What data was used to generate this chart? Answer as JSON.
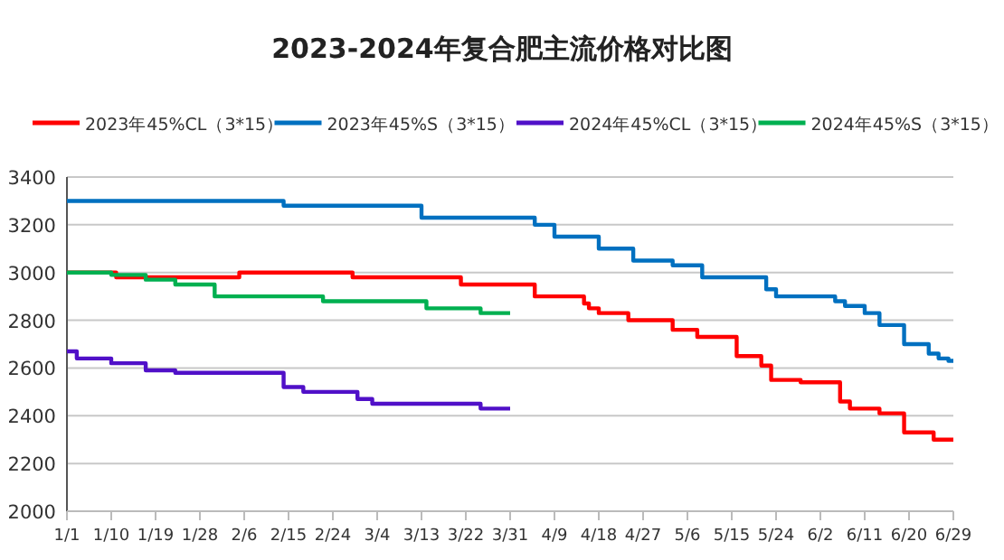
{
  "chart_data": {
    "type": "step",
    "title": "2023-2024年复合肥主流价格对比图",
    "series": [
      {
        "name": "2023年45%CL（3*15）",
        "color": "#ff0000",
        "x": [
          "--01-01",
          "--01-11",
          "--02-05",
          "--02-28",
          "--03-21",
          "--04-05",
          "--04-15",
          "--04-16",
          "--04-18",
          "--04-24",
          "--05-03",
          "--05-08",
          "--05-16",
          "--05-21",
          "--05-23",
          "--05-29",
          "--06-06",
          "--06-08",
          "--06-14",
          "--06-19",
          "--06-25",
          "--06-29"
        ],
        "values": [
          3000,
          2980,
          3000,
          2980,
          2950,
          2900,
          2870,
          2850,
          2830,
          2800,
          2760,
          2730,
          2650,
          2610,
          2550,
          2540,
          2460,
          2430,
          2410,
          2330,
          2300,
          2300
        ]
      },
      {
        "name": "2023年45%S（3*15）",
        "color": "#0070c0",
        "x": [
          "--01-01",
          "--02-14",
          "--03-13",
          "--04-05",
          "--04-09",
          "--04-18",
          "--04-25",
          "--05-03",
          "--05-09",
          "--05-22",
          "--05-24",
          "--06-05",
          "--06-07",
          "--06-11",
          "--06-14",
          "--06-19",
          "--06-24",
          "--06-26",
          "--06-28",
          "--06-29"
        ],
        "values": [
          3300,
          3280,
          3230,
          3200,
          3150,
          3100,
          3050,
          3030,
          2980,
          2930,
          2900,
          2880,
          2860,
          2830,
          2780,
          2700,
          2660,
          2640,
          2630,
          2630
        ]
      },
      {
        "name": "2024年45%CL（3*15）",
        "color": "#5010c8",
        "x": [
          "--01-01",
          "--01-03",
          "--01-10",
          "--01-17",
          "--01-23",
          "--02-14",
          "--02-18",
          "--02-29",
          "--03-03",
          "--03-25",
          "--03-31"
        ],
        "values": [
          2670,
          2640,
          2620,
          2590,
          2580,
          2520,
          2500,
          2470,
          2450,
          2430,
          2430
        ]
      },
      {
        "name": "2024年45%S（3*15）",
        "color": "#00b050",
        "x": [
          "--01-01",
          "--01-10",
          "--01-17",
          "--01-23",
          "--01-31",
          "--02-22",
          "--03-14",
          "--03-25",
          "--03-31"
        ],
        "values": [
          3000,
          2990,
          2970,
          2950,
          2900,
          2880,
          2850,
          2830,
          2830
        ]
      }
    ],
    "xlim": [
      "--01-01",
      "--06-29"
    ],
    "xticks": [
      {
        "value": "--01-01",
        "label": "1/1"
      },
      {
        "value": "--01-10",
        "label": "1/10"
      },
      {
        "value": "--01-19",
        "label": "1/19"
      },
      {
        "value": "--01-28",
        "label": "1/28"
      },
      {
        "value": "--02-06",
        "label": "2/6"
      },
      {
        "value": "--02-15",
        "label": "2/15"
      },
      {
        "value": "--02-24",
        "label": "2/24"
      },
      {
        "value": "--03-04",
        "label": "3/4"
      },
      {
        "value": "--03-13",
        "label": "3/13"
      },
      {
        "value": "--03-22",
        "label": "3/22"
      },
      {
        "value": "--03-31",
        "label": "3/31"
      },
      {
        "value": "--04-09",
        "label": "4/9"
      },
      {
        "value": "--04-18",
        "label": "4/18"
      },
      {
        "value": "--04-27",
        "label": "4/27"
      },
      {
        "value": "--05-06",
        "label": "5/6"
      },
      {
        "value": "--05-15",
        "label": "5/15"
      },
      {
        "value": "--05-24",
        "label": "5/24"
      },
      {
        "value": "--06-02",
        "label": "6/2"
      },
      {
        "value": "--06-11",
        "label": "6/11"
      },
      {
        "value": "--06-20",
        "label": "6/20"
      },
      {
        "value": "--06-29",
        "label": "6/29"
      }
    ],
    "ylim": [
      2000,
      3400
    ],
    "yticks": [
      2000,
      2200,
      2400,
      2600,
      2800,
      3000,
      3200,
      3400
    ],
    "grid": "y",
    "legend": "top"
  }
}
